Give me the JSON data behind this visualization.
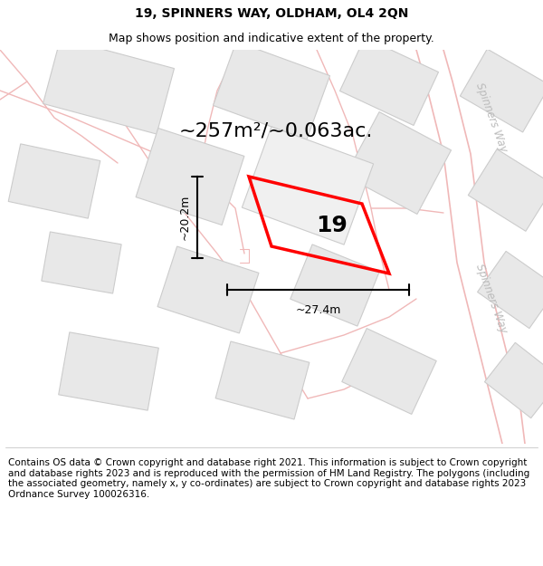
{
  "title": "19, SPINNERS WAY, OLDHAM, OL4 2QN",
  "subtitle": "Map shows position and indicative extent of the property.",
  "footer": "Contains OS data © Crown copyright and database right 2021. This information is subject to Crown copyright and database rights 2023 and is reproduced with the permission of HM Land Registry. The polygons (including the associated geometry, namely x, y co-ordinates) are subject to Crown copyright and database rights 2023 Ordnance Survey 100026316.",
  "area_label": "~257m²/~0.063ac.",
  "number_label": "19",
  "width_label": "~27.4m",
  "height_label": "~20.2m",
  "bg_color": "#ffffff",
  "road_line_color": "#f0b8b8",
  "building_fill": "#e8e8e8",
  "building_edge": "#cccccc",
  "highlight_color": "#ff0000",
  "road_label_color": "#bbbbbb",
  "spinners_way_label": "Spinners Way",
  "title_fontsize": 10,
  "subtitle_fontsize": 9,
  "footer_fontsize": 7.5,
  "area_fontsize": 16,
  "number_fontsize": 18,
  "dim_fontsize": 9
}
